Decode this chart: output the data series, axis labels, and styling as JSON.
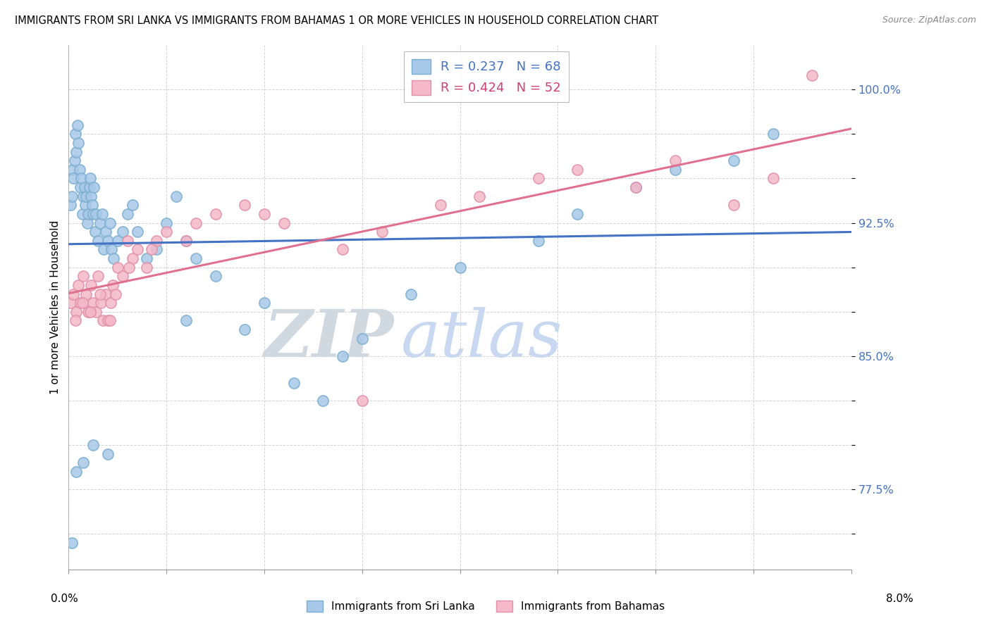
{
  "title": "IMMIGRANTS FROM SRI LANKA VS IMMIGRANTS FROM BAHAMAS 1 OR MORE VEHICLES IN HOUSEHOLD CORRELATION CHART",
  "source": "Source: ZipAtlas.com",
  "ylabel": "1 or more Vehicles in Household",
  "xmin": 0.0,
  "xmax": 8.0,
  "ymin": 73.0,
  "ymax": 102.5,
  "sri_lanka_R": 0.237,
  "sri_lanka_N": 68,
  "bahamas_R": 0.424,
  "bahamas_N": 52,
  "sri_lanka_color": "#a8c8e8",
  "bahamas_color": "#f4b8c8",
  "sri_lanka_edge_color": "#7aaed0",
  "bahamas_edge_color": "#e090a8",
  "sri_lanka_line_color": "#4472c4",
  "bahamas_line_color": "#e07090",
  "ytick_vals": [
    75.0,
    77.5,
    80.0,
    82.5,
    85.0,
    87.5,
    90.0,
    92.5,
    95.0,
    97.5,
    100.0
  ],
  "ytick_labels": [
    "",
    "77.5%",
    "",
    "",
    "85.0%",
    "",
    "",
    "92.5%",
    "",
    "",
    "100.0%"
  ],
  "watermark_zip": "ZIP",
  "watermark_atlas": "atlas",
  "watermark_zip_color": "#d0d8e0",
  "watermark_atlas_color": "#c8d8f0",
  "sri_lanka_x": [
    0.02,
    0.03,
    0.04,
    0.05,
    0.06,
    0.07,
    0.08,
    0.09,
    0.1,
    0.11,
    0.12,
    0.13,
    0.14,
    0.15,
    0.16,
    0.17,
    0.18,
    0.19,
    0.2,
    0.21,
    0.22,
    0.23,
    0.24,
    0.25,
    0.26,
    0.27,
    0.28,
    0.3,
    0.32,
    0.34,
    0.36,
    0.38,
    0.4,
    0.42,
    0.44,
    0.46,
    0.5,
    0.55,
    0.6,
    0.65,
    0.7,
    0.8,
    0.9,
    1.0,
    1.1,
    1.2,
    1.3,
    1.5,
    1.8,
    2.0,
    2.3,
    2.6,
    3.0,
    3.5,
    4.0,
    4.8,
    5.2,
    5.8,
    6.2,
    6.8,
    7.2,
    0.03,
    0.08,
    0.15,
    0.25,
    0.4,
    1.2,
    2.8
  ],
  "sri_lanka_y": [
    93.5,
    94.0,
    95.5,
    95.0,
    96.0,
    97.5,
    96.5,
    98.0,
    97.0,
    95.5,
    94.5,
    95.0,
    93.0,
    94.0,
    94.5,
    93.5,
    94.0,
    92.5,
    93.0,
    94.5,
    95.0,
    94.0,
    93.5,
    93.0,
    94.5,
    92.0,
    93.0,
    91.5,
    92.5,
    93.0,
    91.0,
    92.0,
    91.5,
    92.5,
    91.0,
    90.5,
    91.5,
    92.0,
    93.0,
    93.5,
    92.0,
    90.5,
    91.0,
    92.5,
    94.0,
    91.5,
    90.5,
    89.5,
    86.5,
    88.0,
    83.5,
    82.5,
    86.0,
    88.5,
    90.0,
    91.5,
    93.0,
    94.5,
    95.5,
    96.0,
    97.5,
    74.5,
    78.5,
    79.0,
    80.0,
    79.5,
    87.0,
    85.0
  ],
  "bahamas_x": [
    0.02,
    0.05,
    0.08,
    0.1,
    0.12,
    0.15,
    0.18,
    0.2,
    0.23,
    0.25,
    0.28,
    0.3,
    0.33,
    0.35,
    0.38,
    0.4,
    0.43,
    0.45,
    0.48,
    0.5,
    0.55,
    0.6,
    0.65,
    0.7,
    0.8,
    0.9,
    1.0,
    1.2,
    1.5,
    1.8,
    2.2,
    2.8,
    3.2,
    3.8,
    4.2,
    4.8,
    5.2,
    5.8,
    6.2,
    6.8,
    7.2,
    0.07,
    0.14,
    0.22,
    0.32,
    0.42,
    0.62,
    0.85,
    1.3,
    2.0,
    3.0,
    7.6
  ],
  "bahamas_y": [
    88.0,
    88.5,
    87.5,
    89.0,
    88.0,
    89.5,
    88.5,
    87.5,
    89.0,
    88.0,
    87.5,
    89.5,
    88.0,
    87.0,
    88.5,
    87.0,
    88.0,
    89.0,
    88.5,
    90.0,
    89.5,
    91.5,
    90.5,
    91.0,
    90.0,
    91.5,
    92.0,
    91.5,
    93.0,
    93.5,
    92.5,
    91.0,
    92.0,
    93.5,
    94.0,
    95.0,
    95.5,
    94.5,
    96.0,
    93.5,
    95.0,
    87.0,
    88.0,
    87.5,
    88.5,
    87.0,
    90.0,
    91.0,
    92.5,
    93.0,
    82.5,
    100.8
  ]
}
